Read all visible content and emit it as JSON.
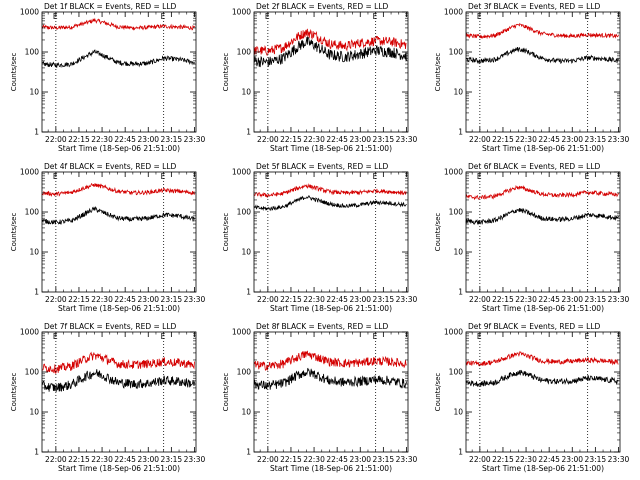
{
  "chart_data": [
    {
      "type": "line",
      "title": "Det 1f BLACK = Events, RED = LLD",
      "xlabel": "Start Time (18-Sep-06 21:51:00)",
      "ylabel": "Counts/sec",
      "ylim": [
        1,
        1000
      ],
      "log_y": true,
      "x_ticks": [
        "22:00",
        "22:15",
        "22:30",
        "22:45",
        "23:00",
        "23:15",
        "23:30"
      ],
      "y_ticks": [
        "1",
        "10",
        "100",
        "1000"
      ],
      "marker_times": [
        "22:00",
        "23:10"
      ],
      "marker_labels": [
        "E",
        "E"
      ],
      "series": [
        {
          "color": "#d40000",
          "x": [
            "21:51",
            "22:00",
            "22:10",
            "22:20",
            "22:25",
            "22:30",
            "22:40",
            "22:50",
            "23:00",
            "23:10",
            "23:20",
            "23:30"
          ],
          "y": [
            420,
            400,
            420,
            540,
            620,
            560,
            430,
            400,
            410,
            440,
            420,
            400
          ],
          "noise": 0.05
        },
        {
          "color": "#000000",
          "x": [
            "21:51",
            "22:00",
            "22:10",
            "22:20",
            "22:25",
            "22:30",
            "22:40",
            "22:50",
            "23:00",
            "23:10",
            "23:20",
            "23:30"
          ],
          "y": [
            50,
            47,
            50,
            80,
            100,
            85,
            55,
            50,
            52,
            70,
            65,
            55
          ],
          "noise": 0.06
        }
      ]
    },
    {
      "type": "line",
      "title": "Det 2f BLACK = Events, RED = LLD",
      "xlabel": "Start Time (18-Sep-06 21:51:00)",
      "ylabel": "Counts/sec",
      "ylim": [
        1,
        1000
      ],
      "log_y": true,
      "x_ticks": [
        "22:00",
        "22:15",
        "22:30",
        "22:45",
        "23:00",
        "23:15",
        "23:30"
      ],
      "y_ticks": [
        "1",
        "10",
        "100",
        "1000"
      ],
      "marker_times": [
        "22:00",
        "23:10"
      ],
      "marker_labels": [
        "E",
        "E"
      ],
      "series": [
        {
          "color": "#d40000",
          "x": [
            "21:51",
            "22:00",
            "22:10",
            "22:20",
            "22:25",
            "22:30",
            "22:40",
            "22:50",
            "23:00",
            "23:10",
            "23:20",
            "23:30"
          ],
          "y": [
            110,
            105,
            130,
            250,
            310,
            270,
            160,
            140,
            170,
            190,
            180,
            150
          ],
          "noise": 0.12
        },
        {
          "color": "#000000",
          "x": [
            "21:51",
            "22:00",
            "22:10",
            "22:20",
            "22:25",
            "22:30",
            "22:40",
            "22:50",
            "23:00",
            "23:10",
            "23:20",
            "23:30"
          ],
          "y": [
            60,
            55,
            70,
            140,
            180,
            150,
            85,
            75,
            90,
            110,
            100,
            80
          ],
          "noise": 0.14
        }
      ]
    },
    {
      "type": "line",
      "title": "Det 3f BLACK = Events, RED = LLD",
      "xlabel": "Start Time (18-Sep-06 21:51:00)",
      "ylabel": "Counts/sec",
      "ylim": [
        1,
        1000
      ],
      "log_y": true,
      "x_ticks": [
        "22:00",
        "22:15",
        "22:30",
        "22:45",
        "23:00",
        "23:15",
        "23:30"
      ],
      "y_ticks": [
        "1",
        "10",
        "100",
        "1000"
      ],
      "marker_times": [
        "22:00",
        "23:10"
      ],
      "marker_labels": [
        "E",
        "E"
      ],
      "series": [
        {
          "color": "#d40000",
          "x": [
            "21:51",
            "22:00",
            "22:10",
            "22:20",
            "22:25",
            "22:30",
            "22:40",
            "22:50",
            "23:00",
            "23:10",
            "23:20",
            "23:30"
          ],
          "y": [
            260,
            240,
            260,
            400,
            480,
            420,
            290,
            260,
            250,
            270,
            260,
            250
          ],
          "noise": 0.05
        },
        {
          "color": "#000000",
          "x": [
            "21:51",
            "22:00",
            "22:10",
            "22:20",
            "22:25",
            "22:30",
            "22:40",
            "22:50",
            "23:00",
            "23:10",
            "23:20",
            "23:30"
          ],
          "y": [
            65,
            60,
            65,
            100,
            120,
            105,
            70,
            60,
            60,
            72,
            68,
            60
          ],
          "noise": 0.06
        }
      ]
    },
    {
      "type": "line",
      "title": "Det 4f BLACK = Events, RED = LLD",
      "xlabel": "Start Time (18-Sep-06 21:51:00)",
      "ylabel": "Counts/sec",
      "ylim": [
        1,
        1000
      ],
      "log_y": true,
      "x_ticks": [
        "22:00",
        "22:15",
        "22:30",
        "22:45",
        "23:00",
        "23:15",
        "23:30"
      ],
      "y_ticks": [
        "1",
        "10",
        "100",
        "1000"
      ],
      "marker_times": [
        "22:00",
        "23:10"
      ],
      "marker_labels": [
        "E",
        "E"
      ],
      "series": [
        {
          "color": "#d40000",
          "x": [
            "21:51",
            "22:00",
            "22:10",
            "22:20",
            "22:25",
            "22:30",
            "22:40",
            "22:50",
            "23:00",
            "23:10",
            "23:20",
            "23:30"
          ],
          "y": [
            300,
            280,
            310,
            420,
            480,
            430,
            330,
            300,
            310,
            350,
            330,
            300
          ],
          "noise": 0.05
        },
        {
          "color": "#000000",
          "x": [
            "21:51",
            "22:00",
            "22:10",
            "22:20",
            "22:25",
            "22:30",
            "22:40",
            "22:50",
            "23:00",
            "23:10",
            "23:20",
            "23:30"
          ],
          "y": [
            60,
            55,
            60,
            95,
            120,
            100,
            70,
            65,
            70,
            85,
            80,
            65
          ],
          "noise": 0.06
        }
      ]
    },
    {
      "type": "line",
      "title": "Det 5f BLACK = Events, RED = LLD",
      "xlabel": "Start Time (18-Sep-06 21:51:00)",
      "ylabel": "Counts/sec",
      "ylim": [
        1,
        1000
      ],
      "log_y": true,
      "x_ticks": [
        "22:00",
        "22:15",
        "22:30",
        "22:45",
        "23:00",
        "23:15",
        "23:30"
      ],
      "y_ticks": [
        "1",
        "10",
        "100",
        "1000"
      ],
      "marker_times": [
        "22:00",
        "23:10"
      ],
      "marker_labels": [
        "E",
        "E"
      ],
      "series": [
        {
          "color": "#d40000",
          "x": [
            "21:51",
            "22:00",
            "22:10",
            "22:20",
            "22:25",
            "22:30",
            "22:40",
            "22:50",
            "23:00",
            "23:10",
            "23:20",
            "23:30"
          ],
          "y": [
            280,
            260,
            290,
            400,
            460,
            410,
            320,
            300,
            310,
            340,
            320,
            300
          ],
          "noise": 0.05
        },
        {
          "color": "#000000",
          "x": [
            "21:51",
            "22:00",
            "22:10",
            "22:20",
            "22:25",
            "22:30",
            "22:40",
            "22:50",
            "23:00",
            "23:10",
            "23:20",
            "23:30"
          ],
          "y": [
            130,
            120,
            135,
            200,
            240,
            210,
            160,
            140,
            150,
            175,
            165,
            150
          ],
          "noise": 0.05
        }
      ]
    },
    {
      "type": "line",
      "title": "Det 6f BLACK = Events, RED = LLD",
      "xlabel": "Start Time (18-Sep-06 21:51:00)",
      "ylabel": "Counts/sec",
      "ylim": [
        1,
        1000
      ],
      "log_y": true,
      "x_ticks": [
        "22:00",
        "22:15",
        "22:30",
        "22:45",
        "23:00",
        "23:15",
        "23:30"
      ],
      "y_ticks": [
        "1",
        "10",
        "100",
        "1000"
      ],
      "marker_times": [
        "22:00",
        "23:10"
      ],
      "marker_labels": [
        "E",
        "E"
      ],
      "series": [
        {
          "color": "#d40000",
          "x": [
            "21:51",
            "22:00",
            "22:10",
            "22:20",
            "22:25",
            "22:30",
            "22:40",
            "22:50",
            "23:00",
            "23:10",
            "23:20",
            "23:30"
          ],
          "y": [
            240,
            230,
            250,
            360,
            420,
            370,
            280,
            260,
            270,
            310,
            290,
            270
          ],
          "noise": 0.05
        },
        {
          "color": "#000000",
          "x": [
            "21:51",
            "22:00",
            "22:10",
            "22:20",
            "22:25",
            "22:30",
            "22:40",
            "22:50",
            "23:00",
            "23:10",
            "23:20",
            "23:30"
          ],
          "y": [
            60,
            55,
            62,
            95,
            115,
            100,
            70,
            65,
            68,
            85,
            80,
            70
          ],
          "noise": 0.06
        }
      ]
    },
    {
      "type": "line",
      "title": "Det 7f BLACK = Events, RED = LLD",
      "xlabel": "Start Time (18-Sep-06 21:51:00)",
      "ylabel": "Counts/sec",
      "ylim": [
        1,
        1000
      ],
      "log_y": true,
      "x_ticks": [
        "22:00",
        "22:15",
        "22:30",
        "22:45",
        "23:00",
        "23:15",
        "23:30"
      ],
      "y_ticks": [
        "1",
        "10",
        "100",
        "1000"
      ],
      "marker_times": [
        "22:00",
        "23:10"
      ],
      "marker_labels": [
        "E",
        "E"
      ],
      "series": [
        {
          "color": "#d40000",
          "x": [
            "21:51",
            "22:00",
            "22:10",
            "22:20",
            "22:25",
            "22:30",
            "22:40",
            "22:50",
            "23:00",
            "23:10",
            "23:20",
            "23:30"
          ],
          "y": [
            130,
            120,
            140,
            220,
            260,
            230,
            160,
            150,
            160,
            180,
            170,
            150
          ],
          "noise": 0.11
        },
        {
          "color": "#000000",
          "x": [
            "21:51",
            "22:00",
            "22:10",
            "22:20",
            "22:25",
            "22:30",
            "22:40",
            "22:50",
            "23:00",
            "23:10",
            "23:20",
            "23:30"
          ],
          "y": [
            45,
            40,
            48,
            80,
            95,
            85,
            55,
            50,
            52,
            62,
            58,
            50
          ],
          "noise": 0.12
        }
      ]
    },
    {
      "type": "line",
      "title": "Det 8f BLACK = Events, RED = LLD",
      "xlabel": "Start Time (18-Sep-06 21:51:00)",
      "ylabel": "Counts/sec",
      "ylim": [
        1,
        1000
      ],
      "log_y": true,
      "x_ticks": [
        "22:00",
        "22:15",
        "22:30",
        "22:45",
        "23:00",
        "23:15",
        "23:30"
      ],
      "y_ticks": [
        "1",
        "10",
        "100",
        "1000"
      ],
      "marker_times": [
        "22:00",
        "23:10"
      ],
      "marker_labels": [
        "E",
        "E"
      ],
      "series": [
        {
          "color": "#d40000",
          "x": [
            "21:51",
            "22:00",
            "22:10",
            "22:20",
            "22:25",
            "22:30",
            "22:40",
            "22:50",
            "23:00",
            "23:10",
            "23:20",
            "23:30"
          ],
          "y": [
            150,
            140,
            160,
            240,
            280,
            250,
            180,
            165,
            170,
            190,
            180,
            160
          ],
          "noise": 0.11
        },
        {
          "color": "#000000",
          "x": [
            "21:51",
            "22:00",
            "22:10",
            "22:20",
            "22:25",
            "22:30",
            "22:40",
            "22:50",
            "23:00",
            "23:10",
            "23:20",
            "23:30"
          ],
          "y": [
            50,
            45,
            52,
            85,
            100,
            90,
            60,
            55,
            58,
            65,
            60,
            50
          ],
          "noise": 0.12
        }
      ]
    },
    {
      "type": "line",
      "title": "Det 9f BLACK = Events, RED = LLD",
      "xlabel": "Start Time (18-Sep-06 21:51:00)",
      "ylabel": "Counts/sec",
      "ylim": [
        1,
        1000
      ],
      "log_y": true,
      "x_ticks": [
        "22:00",
        "22:15",
        "22:30",
        "22:45",
        "23:00",
        "23:15",
        "23:30"
      ],
      "y_ticks": [
        "1",
        "10",
        "100",
        "1000"
      ],
      "marker_times": [
        "22:00",
        "23:10"
      ],
      "marker_labels": [
        "E",
        "E"
      ],
      "series": [
        {
          "color": "#d40000",
          "x": [
            "21:51",
            "22:00",
            "22:10",
            "22:20",
            "22:25",
            "22:30",
            "22:40",
            "22:50",
            "23:00",
            "23:10",
            "23:20",
            "23:30"
          ],
          "y": [
            170,
            160,
            180,
            250,
            290,
            260,
            190,
            180,
            185,
            200,
            190,
            175
          ],
          "noise": 0.06
        },
        {
          "color": "#000000",
          "x": [
            "21:51",
            "22:00",
            "22:10",
            "22:20",
            "22:25",
            "22:30",
            "22:40",
            "22:50",
            "23:00",
            "23:10",
            "23:20",
            "23:30"
          ],
          "y": [
            55,
            50,
            55,
            85,
            100,
            90,
            62,
            58,
            60,
            70,
            65,
            58
          ],
          "noise": 0.07
        }
      ]
    }
  ]
}
